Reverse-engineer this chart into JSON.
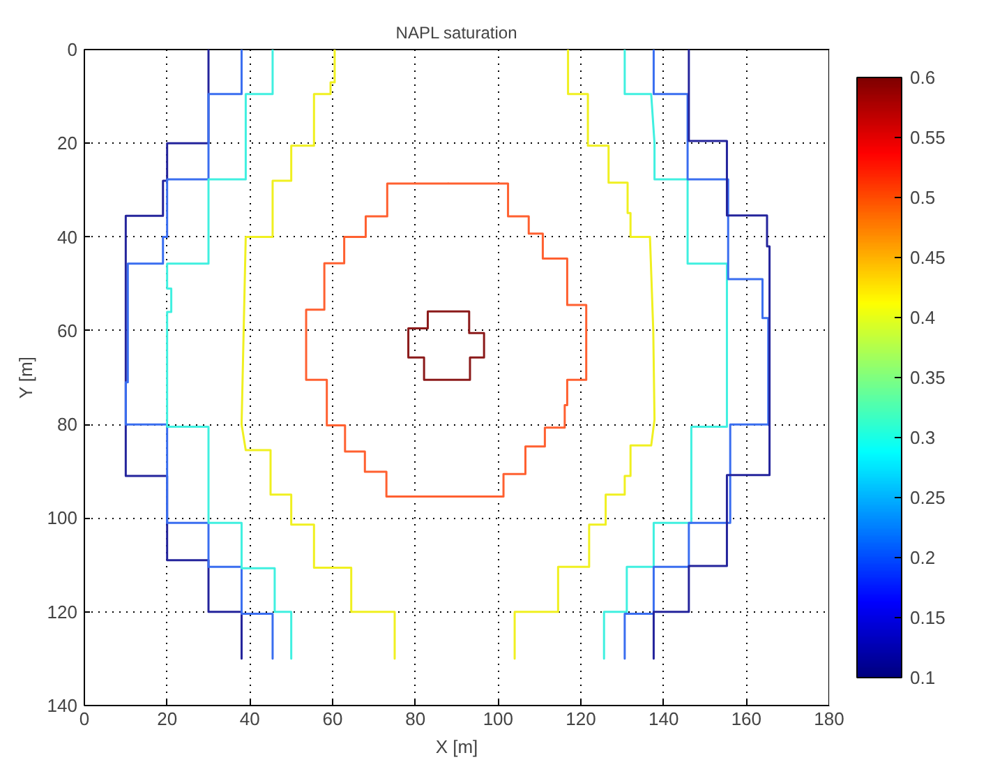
{
  "chart_data": {
    "type": "line",
    "title": "NAPL saturation",
    "xlabel": "X [m]",
    "ylabel": "Y [m]",
    "xlim": [
      0,
      180
    ],
    "ylim": [
      140,
      0
    ],
    "xticks": [
      0,
      20,
      40,
      60,
      80,
      100,
      120,
      140,
      160,
      180
    ],
    "yticks": [
      0,
      20,
      40,
      60,
      80,
      100,
      120,
      140
    ],
    "grid": true,
    "clim": [
      0.1,
      0.6
    ],
    "cticks": [
      0.1,
      0.15,
      0.2,
      0.25,
      0.3,
      0.35,
      0.4,
      0.45,
      0.5,
      0.55,
      0.6
    ],
    "series": [
      {
        "color": "#24249c",
        "x": [
          30,
          30,
          20,
          20,
          19,
          19,
          10,
          10,
          20,
          20,
          30,
          30,
          38,
          38
        ],
        "values": [
          0,
          20,
          20,
          28,
          28,
          35.5,
          35.5,
          91,
          91,
          109,
          109,
          120,
          120,
          130
        ]
      },
      {
        "color": "#3a6ef0",
        "x": [
          38,
          38,
          30,
          30,
          20,
          20,
          19,
          19,
          10.5,
          10.5,
          10,
          10,
          20,
          20,
          30,
          30,
          38,
          38,
          45.5,
          45.5
        ],
        "values": [
          0,
          9.5,
          9.5,
          27.7,
          27.7,
          40,
          40,
          45.7,
          45.7,
          71,
          71,
          80,
          80,
          101,
          101,
          110.4,
          110.4,
          120.4,
          120.4,
          130
        ]
      },
      {
        "color": "#40f0e0",
        "x": [
          45.5,
          45.5,
          39,
          39,
          30,
          30,
          20,
          20,
          21,
          21,
          20,
          20,
          30,
          30,
          38,
          38,
          46,
          46,
          50,
          50
        ],
        "values": [
          0,
          9.5,
          9.5,
          27.7,
          27.7,
          45.7,
          45.7,
          51,
          51,
          56,
          56,
          80.5,
          80.5,
          101,
          101,
          110.7,
          110.7,
          120,
          120,
          130
        ]
      },
      {
        "color": "#f0f020",
        "x": [
          60.5,
          60.5,
          59.5,
          59.5,
          55.5,
          55.5,
          50,
          50,
          45.5,
          45.5,
          39,
          38.5,
          38,
          39,
          45,
          45,
          50,
          50,
          55.5,
          55.5,
          64.5,
          64.5,
          75,
          75
        ],
        "values": [
          0,
          7,
          7,
          9.5,
          9.5,
          20.5,
          20.5,
          28,
          28,
          40,
          40,
          60,
          80,
          85.5,
          85.5,
          95,
          95,
          101.4,
          101.4,
          110.6,
          110.6,
          120,
          120,
          130
        ]
      },
      {
        "color": "#ff6030",
        "x": [
          88,
          102.4,
          102.4,
          107.4,
          107.4,
          110.8,
          110.8,
          116.7,
          116.7,
          121.3,
          121.3,
          116.7,
          116.7,
          116.1,
          116.1,
          111.3,
          111.3,
          106.6,
          106.6,
          101.3,
          101.3,
          73,
          73,
          67.8,
          67.8,
          63,
          63,
          58.6,
          58.6,
          53.6,
          53.6,
          58,
          58,
          62.8,
          62.8,
          68,
          68,
          73.2,
          73.2,
          87.9
        ],
        "values": [
          28.6,
          28.6,
          35.6,
          35.6,
          39.3,
          39.3,
          44.6,
          44.6,
          54.5,
          54.5,
          70.5,
          70.5,
          75.9,
          75.9,
          80.7,
          80.7,
          84.7,
          84.7,
          90.6,
          90.6,
          95.4,
          95.4,
          90.1,
          90.1,
          85.8,
          85.8,
          80.2,
          80.2,
          70.5,
          70.5,
          55.5,
          55.5,
          45.6,
          45.6,
          40,
          40,
          35.6,
          35.6,
          28.6,
          28.6
        ]
      },
      {
        "color": "#8b1a1a",
        "x": [
          88,
          93,
          93,
          96.6,
          96.6,
          93.2,
          93.2,
          82.1,
          82.1,
          78.3,
          78.3,
          83,
          83,
          87.9
        ],
        "values": [
          55.9,
          55.9,
          60.5,
          60.5,
          65.7,
          65.7,
          70.5,
          70.5,
          65.7,
          65.7,
          59.5,
          59.5,
          55.9,
          55.9
        ]
      },
      {
        "color": "#f0f020",
        "x": [
          116.9,
          116.9,
          121.7,
          121.7,
          126.7,
          126.7,
          131.3,
          131.3,
          132,
          132,
          136.7,
          137.5,
          137.8,
          137,
          132,
          132,
          130.6,
          130.6,
          126,
          126,
          122,
          122,
          114.5,
          114.5,
          104,
          104
        ],
        "values": [
          0,
          9.5,
          9.5,
          20.5,
          20.5,
          28.4,
          28.4,
          34.9,
          34.9,
          40,
          40,
          60,
          79,
          84.5,
          84.5,
          91,
          91,
          95,
          95,
          101.4,
          101.4,
          110.4,
          110.4,
          120,
          120,
          130
        ]
      },
      {
        "color": "#40f0e0",
        "x": [
          130.6,
          130.6,
          137,
          137.8,
          137.8,
          145.8,
          145.8,
          155.3,
          155.3,
          146.7,
          146.7,
          137.6,
          137.6,
          131.1,
          131.1,
          125.6,
          125.6
        ],
        "values": [
          0,
          9.5,
          9.5,
          20,
          27.7,
          27.7,
          45.7,
          45.7,
          80.5,
          80.5,
          101,
          101,
          110.4,
          110.4,
          120,
          120,
          130
        ]
      },
      {
        "color": "#3a6ef0",
        "x": [
          137.6,
          137.6,
          145.8,
          145.8,
          155.6,
          155.6,
          163.9,
          163.9,
          165.3,
          165.3,
          156.1,
          156.1,
          146.1,
          146.1,
          137.6,
          137.6,
          130.6,
          130.6
        ],
        "values": [
          0,
          9.5,
          9.5,
          27.7,
          27.7,
          49,
          49,
          57.3,
          57.3,
          80,
          80,
          101,
          101,
          110.4,
          110.4,
          120.4,
          120.4,
          130
        ]
      },
      {
        "color": "#24249c",
        "x": [
          146.1,
          146.1,
          155.3,
          155.3,
          165,
          165,
          165.6,
          165.6,
          155.3,
          155.3,
          146.1,
          146.1,
          137.6,
          137.6
        ],
        "values": [
          0,
          19.5,
          19.5,
          35.4,
          35.4,
          42,
          42,
          90.8,
          90.8,
          110.2,
          110.2,
          120,
          120,
          130
        ]
      }
    ]
  }
}
